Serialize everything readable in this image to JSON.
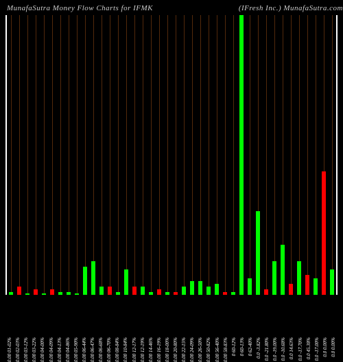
{
  "header": {
    "left": "MunafaSutra   Money Flow   Charts for IFMK",
    "right": "(IFresh Inc.) MunafaSutra.com"
  },
  "chart": {
    "type": "bar",
    "background_color": "#000000",
    "grid_color": "#8B4513",
    "axis_color": "#ffffff",
    "title_color": "#cccccc",
    "label_color": "#ffffff",
    "title_fontsize": 11,
    "label_fontsize": 7,
    "bar_width_ratio": 0.55,
    "ylim": [
      0,
      100
    ],
    "colors": {
      "up": "#00ff00",
      "down": "#ff0000"
    },
    "bars": [
      {
        "label": "0.00 01-02%",
        "value": 1,
        "color": "up"
      },
      {
        "label": "0.00 02-03%",
        "value": 3,
        "color": "down"
      },
      {
        "label": "0.00 03-12%",
        "value": 0.5,
        "color": "up"
      },
      {
        "label": "0.00 03-22%",
        "value": 2,
        "color": "down"
      },
      {
        "label": "0.00 04-00%",
        "value": 0.5,
        "color": "up"
      },
      {
        "label": "0.00 04-09%",
        "value": 2,
        "color": "down"
      },
      {
        "label": "0.00 04-13%",
        "value": 1,
        "color": "up"
      },
      {
        "label": "0.00 04-86%",
        "value": 1,
        "color": "up"
      },
      {
        "label": "0.00 05-90%",
        "value": 0.5,
        "color": "up"
      },
      {
        "label": "0.00 06-44%",
        "value": 10,
        "color": "up"
      },
      {
        "label": "0.00 06-47%",
        "value": 12,
        "color": "up"
      },
      {
        "label": "0.00 06-68%",
        "value": 3,
        "color": "up"
      },
      {
        "label": "0.00 06-70%",
        "value": 3,
        "color": "down"
      },
      {
        "label": "0.00 08-84%",
        "value": 1,
        "color": "up"
      },
      {
        "label": "0.00 10-84%",
        "value": 9,
        "color": "up"
      },
      {
        "label": "0.00 12-17%",
        "value": 3,
        "color": "down"
      },
      {
        "label": "0.00 12-19%",
        "value": 3,
        "color": "up"
      },
      {
        "label": "0.00 14-46%",
        "value": 1,
        "color": "up"
      },
      {
        "label": "0.00 16-19%",
        "value": 2,
        "color": "down"
      },
      {
        "label": "0.00 18-00%",
        "value": 1,
        "color": "up"
      },
      {
        "label": "0.00 20-80%",
        "value": 1,
        "color": "down"
      },
      {
        "label": "0.00 22-15%",
        "value": 3,
        "color": "up"
      },
      {
        "label": "0.00 24-09%",
        "value": 5,
        "color": "up"
      },
      {
        "label": "0.00 26-50%",
        "value": 5,
        "color": "up"
      },
      {
        "label": "0.00 50-82%",
        "value": 3,
        "color": "up"
      },
      {
        "label": "0.00 56-40%",
        "value": 4,
        "color": "up"
      },
      {
        "label": "0.00 58-83%",
        "value": 1,
        "color": "down"
      },
      {
        "label": "0 60-12%",
        "value": 1,
        "color": "up"
      },
      {
        "label": "0 60-13%",
        "value": 100,
        "color": "up"
      },
      {
        "label": "0 62-40%",
        "value": 6,
        "color": "up"
      },
      {
        "label": "0.0 -3.82%",
        "value": 30,
        "color": "up"
      },
      {
        "label": "0.0 -21.80%",
        "value": 2,
        "color": "down"
      },
      {
        "label": "0.0 -19.00%",
        "value": 12,
        "color": "up"
      },
      {
        "label": "0.0 -10.68%",
        "value": 18,
        "color": "up"
      },
      {
        "label": "0.0 14.63%",
        "value": 4,
        "color": "down"
      },
      {
        "label": "0.0 -17.70%",
        "value": 12,
        "color": "up"
      },
      {
        "label": "0.0 45.38%",
        "value": 7,
        "color": "down"
      },
      {
        "label": "0.0 -17.00%",
        "value": 6,
        "color": "up"
      },
      {
        "label": "0.0 0.00%",
        "value": 44,
        "color": "down"
      },
      {
        "label": "0.0 0.00%",
        "value": 9,
        "color": "up"
      }
    ]
  }
}
